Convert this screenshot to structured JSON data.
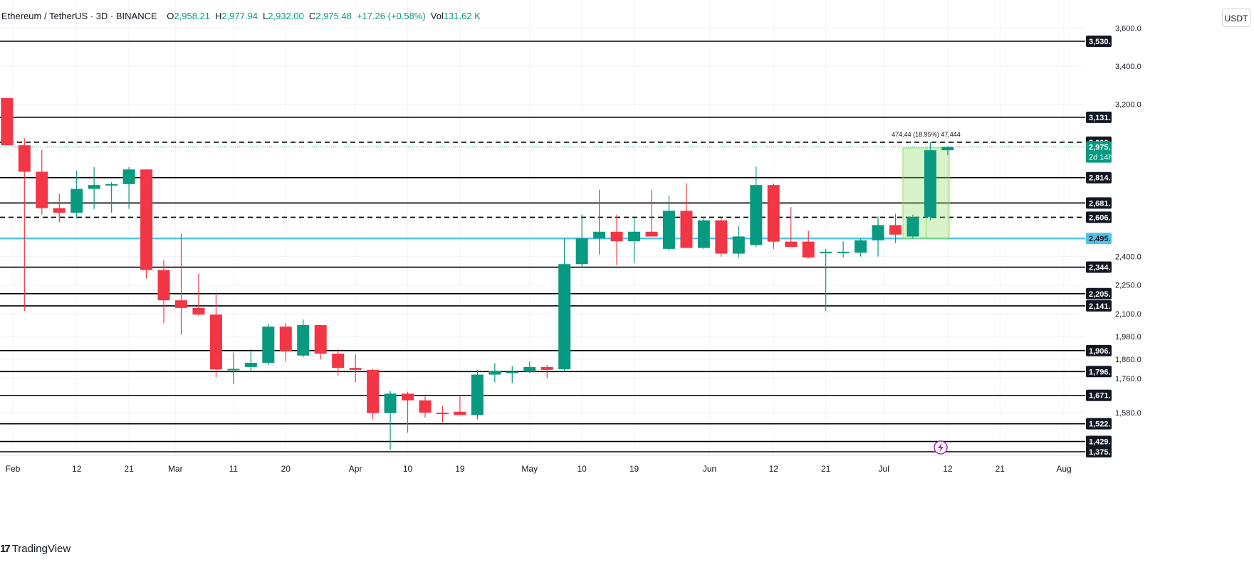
{
  "header": {
    "symbol": "Ethereum / TetherUS · 3D · BINANCE",
    "ohlc": [
      {
        "label": "O",
        "value": "2,958.21"
      },
      {
        "label": "H",
        "value": "2,977.94"
      },
      {
        "label": "L",
        "value": "2,932.00"
      },
      {
        "label": "C",
        "value": "2,975.48"
      },
      {
        "label": "",
        "value": "+17.26 (+0.58%)"
      },
      {
        "label": "Vol",
        "value": "131.62 K"
      }
    ]
  },
  "currency": "USDT",
  "brand": {
    "logo": "17",
    "name": "TradingView"
  },
  "colors": {
    "up": "#089981",
    "down": "#f23645",
    "level": "#000000",
    "support": "#4dc4e8",
    "measure": "#8fdc67"
  },
  "chart_data": {
    "type": "candlestick",
    "ylim": [
      1360,
      3650
    ],
    "y_ticks": [
      1580,
      1760,
      1860,
      1980,
      2100,
      2250,
      2400,
      3200,
      3400,
      3600
    ],
    "x_axis_labels": [
      {
        "label": "Feb",
        "day": 32
      },
      {
        "label": "12",
        "day": 43
      },
      {
        "label": "21",
        "day": 52
      },
      {
        "label": "Mar",
        "day": 60
      },
      {
        "label": "11",
        "day": 70
      },
      {
        "label": "20",
        "day": 79
      },
      {
        "label": "Apr",
        "day": 91
      },
      {
        "label": "10",
        "day": 100
      },
      {
        "label": "19",
        "day": 109
      },
      {
        "label": "May",
        "day": 121
      },
      {
        "label": "10",
        "day": 130
      },
      {
        "label": "19",
        "day": 139
      },
      {
        "label": "Jun",
        "day": 152
      },
      {
        "label": "12",
        "day": 163
      },
      {
        "label": "21",
        "day": 172
      },
      {
        "label": "Jul",
        "day": 182
      },
      {
        "label": "12",
        "day": 193
      },
      {
        "label": "21",
        "day": 202
      },
      {
        "label": "Aug",
        "day": 213
      }
    ],
    "candles": [
      {
        "day": 31,
        "open": 3232,
        "high": 3232,
        "low": 2984,
        "close": 2984
      },
      {
        "day": 34,
        "open": 2984,
        "high": 3020,
        "low": 2115,
        "close": 2845
      },
      {
        "day": 37,
        "open": 2845,
        "high": 2960,
        "low": 2620,
        "close": 2654
      },
      {
        "day": 40,
        "open": 2654,
        "high": 2730,
        "low": 2580,
        "close": 2630
      },
      {
        "day": 43,
        "open": 2630,
        "high": 2850,
        "low": 2600,
        "close": 2755
      },
      {
        "day": 46,
        "open": 2755,
        "high": 2870,
        "low": 2650,
        "close": 2775
      },
      {
        "day": 49,
        "open": 2775,
        "high": 2790,
        "low": 2630,
        "close": 2780
      },
      {
        "day": 52,
        "open": 2780,
        "high": 2870,
        "low": 2650,
        "close": 2857
      },
      {
        "day": 55,
        "open": 2857,
        "high": 2857,
        "low": 2285,
        "close": 2329
      },
      {
        "day": 58,
        "open": 2329,
        "high": 2380,
        "low": 2050,
        "close": 2170
      },
      {
        "day": 61,
        "open": 2170,
        "high": 2520,
        "low": 1990,
        "close": 2130
      },
      {
        "day": 64,
        "open": 2130,
        "high": 2310,
        "low": 2090,
        "close": 2095
      },
      {
        "day": 67,
        "open": 2095,
        "high": 2210,
        "low": 1765,
        "close": 1807
      },
      {
        "day": 70,
        "open": 1810,
        "high": 1895,
        "low": 1730,
        "close": 1810
      },
      {
        "day": 73,
        "open": 1820,
        "high": 1915,
        "low": 1800,
        "close": 1842
      },
      {
        "day": 76,
        "open": 1842,
        "high": 2045,
        "low": 1830,
        "close": 2032
      },
      {
        "day": 79,
        "open": 2032,
        "high": 2050,
        "low": 1850,
        "close": 1905
      },
      {
        "day": 82,
        "open": 1880,
        "high": 2070,
        "low": 1870,
        "close": 2040
      },
      {
        "day": 85,
        "open": 2040,
        "high": 2040,
        "low": 1860,
        "close": 1890
      },
      {
        "day": 88,
        "open": 1890,
        "high": 1915,
        "low": 1775,
        "close": 1815
      },
      {
        "day": 91,
        "open": 1815,
        "high": 1888,
        "low": 1740,
        "close": 1805
      },
      {
        "day": 94,
        "open": 1805,
        "high": 1810,
        "low": 1545,
        "close": 1578
      },
      {
        "day": 97,
        "open": 1578,
        "high": 1695,
        "low": 1385,
        "close": 1680
      },
      {
        "day": 100,
        "open": 1680,
        "high": 1690,
        "low": 1475,
        "close": 1645
      },
      {
        "day": 103,
        "open": 1645,
        "high": 1665,
        "low": 1555,
        "close": 1580
      },
      {
        "day": 106,
        "open": 1580,
        "high": 1615,
        "low": 1530,
        "close": 1578
      },
      {
        "day": 109,
        "open": 1585,
        "high": 1665,
        "low": 1575,
        "close": 1568
      },
      {
        "day": 112,
        "open": 1568,
        "high": 1805,
        "low": 1545,
        "close": 1780
      },
      {
        "day": 115,
        "open": 1780,
        "high": 1840,
        "low": 1740,
        "close": 1800
      },
      {
        "day": 118,
        "open": 1795,
        "high": 1825,
        "low": 1735,
        "close": 1795
      },
      {
        "day": 121,
        "open": 1795,
        "high": 1848,
        "low": 1788,
        "close": 1820
      },
      {
        "day": 124,
        "open": 1820,
        "high": 1830,
        "low": 1760,
        "close": 1805
      },
      {
        "day": 127,
        "open": 1808,
        "high": 2495,
        "low": 1795,
        "close": 2360
      },
      {
        "day": 130,
        "open": 2360,
        "high": 2620,
        "low": 2340,
        "close": 2495
      },
      {
        "day": 133,
        "open": 2495,
        "high": 2750,
        "low": 2410,
        "close": 2530
      },
      {
        "day": 136,
        "open": 2530,
        "high": 2620,
        "low": 2355,
        "close": 2480
      },
      {
        "day": 139,
        "open": 2480,
        "high": 2600,
        "low": 2365,
        "close": 2530
      },
      {
        "day": 142,
        "open": 2530,
        "high": 2750,
        "low": 2505,
        "close": 2505
      },
      {
        "day": 145,
        "open": 2440,
        "high": 2720,
        "low": 2430,
        "close": 2640
      },
      {
        "day": 148,
        "open": 2640,
        "high": 2785,
        "low": 2460,
        "close": 2445
      },
      {
        "day": 151,
        "open": 2445,
        "high": 2610,
        "low": 2440,
        "close": 2590
      },
      {
        "day": 154,
        "open": 2590,
        "high": 2605,
        "low": 2400,
        "close": 2415
      },
      {
        "day": 157,
        "open": 2415,
        "high": 2560,
        "low": 2395,
        "close": 2505
      },
      {
        "day": 160,
        "open": 2460,
        "high": 2872,
        "low": 2450,
        "close": 2775
      },
      {
        "day": 163,
        "open": 2775,
        "high": 2783,
        "low": 2440,
        "close": 2478
      },
      {
        "day": 166,
        "open": 2478,
        "high": 2660,
        "low": 2460,
        "close": 2450
      },
      {
        "day": 169,
        "open": 2478,
        "high": 2535,
        "low": 2390,
        "close": 2395
      },
      {
        "day": 172,
        "open": 2420,
        "high": 2440,
        "low": 2115,
        "close": 2425
      },
      {
        "day": 175,
        "open": 2420,
        "high": 2480,
        "low": 2395,
        "close": 2425
      },
      {
        "day": 178,
        "open": 2420,
        "high": 2495,
        "low": 2400,
        "close": 2485
      },
      {
        "day": 181,
        "open": 2485,
        "high": 2610,
        "low": 2400,
        "close": 2565
      },
      {
        "day": 184,
        "open": 2565,
        "high": 2625,
        "low": 2470,
        "close": 2515
      },
      {
        "day": 187,
        "open": 2505,
        "high": 2620,
        "low": 2495,
        "close": 2608
      },
      {
        "day": 190,
        "open": 2608,
        "high": 3000,
        "low": 2590,
        "close": 2958
      },
      {
        "day": 193,
        "open": 2958,
        "high": 2978,
        "low": 2932,
        "close": 2975
      }
    ],
    "levels": [
      {
        "price": 3530,
        "label": "3,530.",
        "style": "solid"
      },
      {
        "price": 3131,
        "label": "3,131.",
        "style": "solid"
      },
      {
        "price": 3000,
        "label": "3,000.",
        "style": "dashed"
      },
      {
        "price": 2814,
        "label": "2,814.",
        "style": "solid"
      },
      {
        "price": 2681,
        "label": "2,681.",
        "style": "solid"
      },
      {
        "price": 2606,
        "label": "2,606.",
        "style": "dashed"
      },
      {
        "price": 2344,
        "label": "2,344.",
        "style": "solid"
      },
      {
        "price": 2205,
        "label": "2,205.",
        "style": "solid"
      },
      {
        "price": 2141,
        "label": "2,141.",
        "style": "solid"
      },
      {
        "price": 1906,
        "label": "1,906.",
        "style": "solid"
      },
      {
        "price": 1796,
        "label": "1,796.",
        "style": "solid"
      },
      {
        "price": 1671,
        "label": "1,671.",
        "style": "solid"
      },
      {
        "price": 1522,
        "label": "1,522.",
        "style": "solid"
      },
      {
        "price": 1429,
        "label": "1,429.",
        "style": "solid"
      },
      {
        "price": 1375,
        "label": "1,375.",
        "style": "solid"
      }
    ],
    "support_line": {
      "price": 2495,
      "label": "2,495."
    },
    "last_price": {
      "price": 2975,
      "label": "2,975.",
      "countdown": "2d 14h"
    },
    "measure": {
      "from_day": 187,
      "to_day": 193,
      "low": 2495,
      "high": 2970,
      "text": "474.44 (18.95%) 47,444"
    }
  }
}
